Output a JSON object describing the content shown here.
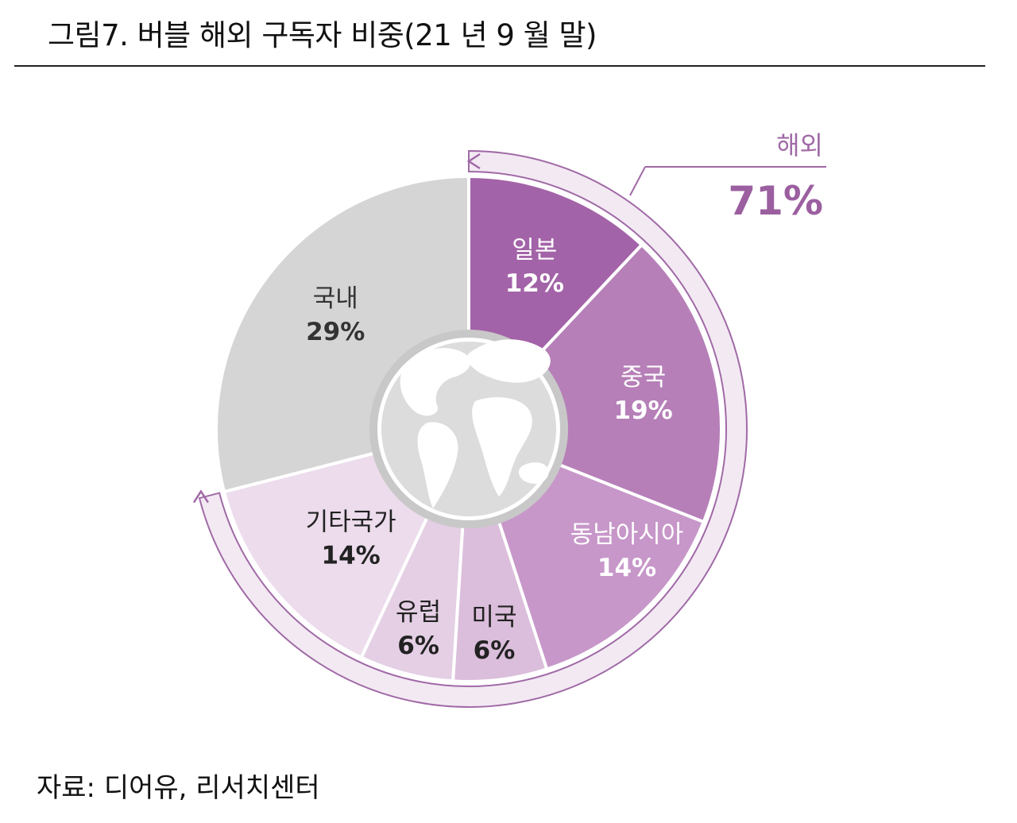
{
  "figure": {
    "title": "그림7. 버블 해외 구독자 비중(21 년 9 월 말)",
    "source": "자료: 디어유, 리서치센터"
  },
  "chart_data": {
    "type": "pie",
    "title": "그림7. 버블 해외 구독자 비중(21 년 9 월 말)",
    "slices": [
      {
        "name": "일본",
        "label": "12%",
        "value": 12,
        "color": "#a363a8",
        "text_color": "#ffffff"
      },
      {
        "name": "중국",
        "label": "19%",
        "value": 19,
        "color": "#b67fb8",
        "text_color": "#ffffff"
      },
      {
        "name": "동남아시아",
        "label": "14%",
        "value": 14,
        "color": "#c797c9",
        "text_color": "#ffffff"
      },
      {
        "name": "미국",
        "label": "6%",
        "value": 6,
        "color": "#dbbedb",
        "text_color": "#222222"
      },
      {
        "name": "유럽",
        "label": "6%",
        "value": 6,
        "color": "#e4cfe4",
        "text_color": "#222222"
      },
      {
        "name": "기타국가",
        "label": "14%",
        "value": 14,
        "color": "#ecdcec",
        "text_color": "#222222"
      },
      {
        "name": "국내",
        "label": "29%",
        "value": 29,
        "color": "#d5d5d5",
        "text_color": "#333333"
      }
    ],
    "overseas_total": {
      "name": "해외",
      "label": "71%",
      "value": 71,
      "color": "#9b5fa0"
    },
    "center_icon": "globe-icon"
  }
}
